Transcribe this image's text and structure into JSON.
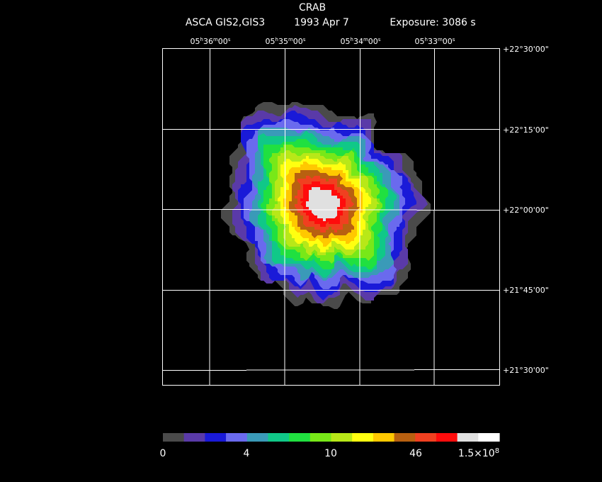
{
  "header": {
    "object_name": "CRAB",
    "instrument": "ASCA GIS2,GIS3",
    "obs_date": "1993 Apr  7",
    "exposure": "Exposure: 3086 s"
  },
  "ra_ticks": [
    {
      "h": "05",
      "m": "36",
      "s": "00"
    },
    {
      "h": "05",
      "m": "35",
      "s": "00"
    },
    {
      "h": "05",
      "m": "34",
      "s": "00"
    },
    {
      "h": "05",
      "m": "33",
      "s": "00"
    }
  ],
  "dec_ticks": [
    "+22°30'00\"",
    "+22°15'00\"",
    "+22°00'00\"",
    "+21°45'00\"",
    "+21°30'00\""
  ],
  "colorbar": {
    "colors": [
      "#4a4a4a",
      "#5a3aa8",
      "#1a1ad8",
      "#6a6aee",
      "#3a9ab8",
      "#10c888",
      "#20e040",
      "#78e818",
      "#b8e818",
      "#ffff10",
      "#ffc800",
      "#b86010",
      "#f04020",
      "#ff0c0c",
      "#e0e0e0",
      "#ffffff"
    ],
    "labels": [
      {
        "text": "0",
        "exp": ""
      },
      {
        "text": "4",
        "exp": ""
      },
      {
        "text": "10",
        "exp": ""
      },
      {
        "text": "46",
        "exp": ""
      },
      {
        "text": "1.5×10",
        "exp": "8"
      }
    ]
  },
  "image_levels": {
    "contour_colors": [
      "#4a4a4a",
      "#5a3aa8",
      "#1a1ad8",
      "#6a6aee",
      "#3a9ab8",
      "#10c888",
      "#20e040",
      "#78e818",
      "#b8e818",
      "#ffff10",
      "#ffc800",
      "#b86010",
      "#f04020",
      "#ff0c0c",
      "#e0e0e0"
    ]
  },
  "colors": {
    "background": "#000000",
    "grid": "#ffffff",
    "text": "#ffffff"
  }
}
